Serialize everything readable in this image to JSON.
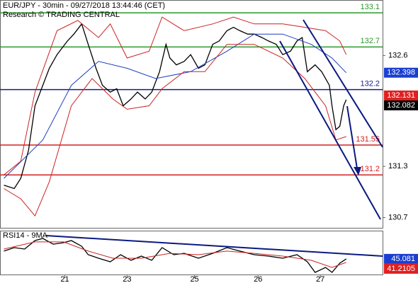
{
  "chart_data": [
    {
      "type": "line",
      "title": "EUR/JPY - 30min - 09/27/2018 13:44:46 (CET)",
      "subtitle": "Research © TRADING CENTRAL",
      "xlim": [
        0,
        295
      ],
      "ylim": [
        130.58,
        133.25
      ],
      "yticks": [
        132.6,
        131.3,
        130.7
      ],
      "series": [
        {
          "color": "#000000",
          "x": [
            3,
            11,
            16,
            22,
            27,
            33,
            38,
            44,
            52,
            57,
            63,
            68,
            74,
            79,
            85,
            90,
            95,
            101,
            106,
            112,
            117,
            123,
            128,
            131,
            136,
            142,
            147,
            153,
            158,
            164,
            169,
            175,
            180,
            185,
            191,
            196,
            202,
            207,
            213,
            218,
            224,
            229,
            233,
            237,
            243,
            248,
            254,
            256,
            259,
            262,
            265,
            267
          ],
          "values": [
            131.08,
            131.04,
            131.16,
            131.49,
            132.01,
            132.25,
            132.45,
            132.61,
            132.77,
            132.85,
            132.97,
            132.73,
            132.45,
            132.25,
            132.17,
            132.21,
            132.01,
            132.09,
            132.17,
            132.09,
            132.17,
            132.41,
            132.73,
            132.57,
            132.49,
            132.53,
            132.61,
            132.45,
            132.49,
            132.73,
            132.77,
            132.89,
            132.93,
            132.89,
            132.85,
            132.85,
            132.81,
            132.77,
            132.73,
            132.61,
            132.65,
            132.77,
            132.81,
            132.41,
            132.49,
            132.41,
            132.25,
            132.01,
            131.73,
            131.77,
            132.01,
            132.082
          ]
        },
        {
          "color": "#1f3fbf",
          "x": [
            3,
            33,
            55,
            76,
            98,
            120,
            147,
            175,
            196,
            218,
            240,
            256,
            267
          ],
          "values": [
            131.16,
            131.61,
            132.25,
            132.53,
            132.45,
            132.33,
            132.41,
            132.65,
            132.85,
            132.85,
            132.73,
            132.57,
            132.398
          ]
        },
        {
          "color": "#cc2222",
          "x": [
            3,
            16,
            27,
            44,
            60,
            76,
            85,
            98,
            115,
            125,
            142,
            164,
            180,
            196,
            218,
            235,
            251,
            262,
            267
          ],
          "values": [
            131.2,
            131.36,
            132.17,
            132.89,
            133.01,
            132.81,
            132.97,
            132.57,
            132.65,
            133.05,
            132.89,
            132.97,
            133.05,
            132.97,
            132.97,
            132.93,
            132.89,
            132.77,
            132.61
          ]
        },
        {
          "color": "#cc2222",
          "x": [
            3,
            16,
            27,
            38,
            55,
            71,
            87,
            98,
            115,
            125,
            142,
            158,
            175,
            196,
            218,
            235,
            251,
            259,
            267
          ],
          "values": [
            131.04,
            130.92,
            130.72,
            131.12,
            132.01,
            132.33,
            132.09,
            131.97,
            132.01,
            132.21,
            132.41,
            132.41,
            132.73,
            132.73,
            132.57,
            132.33,
            132.01,
            131.61,
            131.65
          ]
        }
      ],
      "levels": [
        {
          "value": 133.1,
          "color": "#2a9a2a"
        },
        {
          "value": 132.7,
          "color": "#2a9a2a"
        },
        {
          "value": 132.2,
          "color": "#1a1a8c"
        },
        {
          "value": 131.55,
          "color": "#d42020"
        },
        {
          "value": 131.2,
          "color": "#d42020"
        }
      ],
      "price_tags": [
        {
          "value": 132.398,
          "color": "#1a3fd0"
        },
        {
          "value": 132.131,
          "color": "#e02020"
        },
        {
          "value": 132.082,
          "color": "#000000"
        }
      ]
    },
    {
      "type": "line",
      "title": "RSI14 - 9MA",
      "xlim": [
        0,
        295
      ],
      "xticks": [
        {
          "value": 50,
          "label": "21"
        },
        {
          "value": 98,
          "label": "23"
        },
        {
          "value": 150,
          "label": "25"
        },
        {
          "value": 199,
          "label": "26"
        },
        {
          "value": 247,
          "label": "27"
        }
      ],
      "ylim": [
        25,
        75
      ],
      "series": [
        {
          "color": "#000000",
          "x": [
            3,
            11,
            19,
            27,
            33,
            41,
            49,
            55,
            63,
            68,
            76,
            85,
            93,
            101,
            109,
            117,
            125,
            134,
            142,
            153,
            164,
            175,
            185,
            196,
            207,
            218,
            229,
            237,
            243,
            251,
            256,
            262,
            267
          ],
          "values": [
            53.5,
            57.3,
            55.8,
            65.0,
            67.3,
            61.1,
            62.7,
            65.0,
            58.8,
            49.6,
            45.8,
            41.9,
            49.6,
            43.5,
            48.1,
            43.5,
            57.3,
            49.6,
            51.1,
            45.8,
            51.1,
            57.3,
            53.5,
            49.6,
            48.1,
            45.8,
            49.6,
            41.9,
            30.4,
            35.8,
            30.4,
            40.4,
            45.081
          ]
        },
        {
          "color": "#cc2222",
          "x": [
            3,
            27,
            49,
            68,
            87,
            109,
            131,
            153,
            175,
            196,
            218,
            240,
            256,
            267
          ],
          "values": [
            55.8,
            63.5,
            63.5,
            53.5,
            45.8,
            45.8,
            51.1,
            49.6,
            53.5,
            51.1,
            48.1,
            43.5,
            35.8,
            41.2105
          ]
        }
      ],
      "price_tags": [
        {
          "value": 45.081,
          "color": "#1a3fd0"
        },
        {
          "value": 41.2105,
          "color": "#e02020"
        }
      ]
    }
  ]
}
